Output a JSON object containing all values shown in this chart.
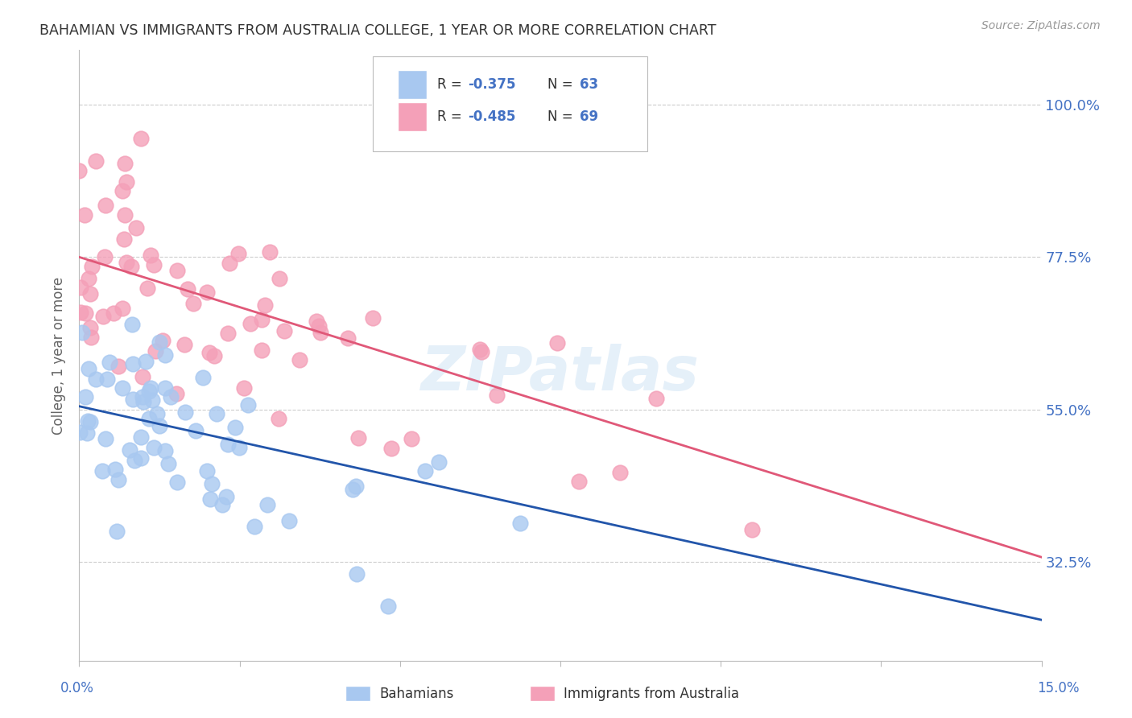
{
  "title": "BAHAMIAN VS IMMIGRANTS FROM AUSTRALIA COLLEGE, 1 YEAR OR MORE CORRELATION CHART",
  "source": "Source: ZipAtlas.com",
  "ylabel": "College, 1 year or more",
  "xmin": 0.0,
  "xmax": 0.15,
  "ymin": 0.18,
  "ymax": 1.08,
  "blue_R": -0.375,
  "blue_N": 63,
  "pink_R": -0.485,
  "pink_N": 69,
  "blue_color": "#A8C8F0",
  "pink_color": "#F4A0B8",
  "blue_line_color": "#2255AA",
  "pink_line_color": "#E05878",
  "watermark": "ZIPatlas",
  "background_color": "#FFFFFF",
  "grid_color": "#CCCCCC",
  "title_color": "#333333",
  "axis_label_color": "#666666",
  "right_axis_color": "#4472C4",
  "bottom_axis_label_color": "#4472C4",
  "blue_intercept": 0.555,
  "blue_slope": -2.1,
  "pink_intercept": 0.775,
  "pink_slope": -2.95
}
